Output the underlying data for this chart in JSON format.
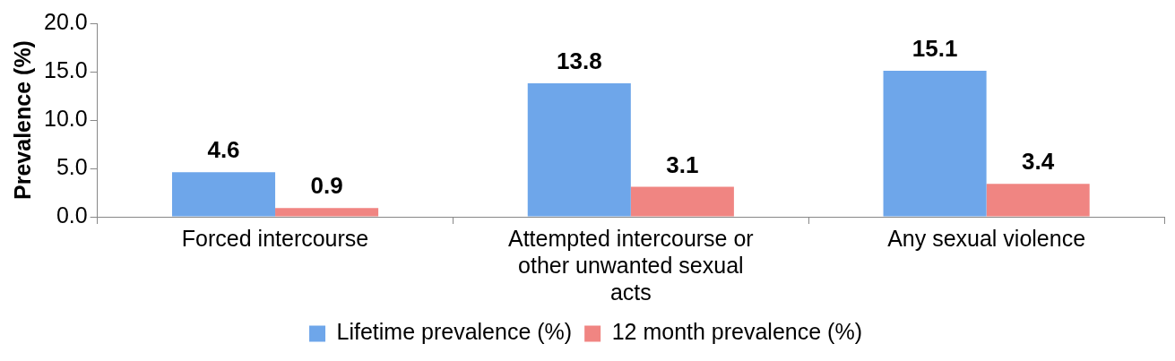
{
  "chart_data": {
    "type": "bar",
    "ylabel": "Prevalence (%)",
    "categories": [
      "Forced intercourse",
      "Attempted intercourse or other unwanted sexual acts",
      "Any sexual violence"
    ],
    "series": [
      {
        "name": "Lifetime prevalence (%)",
        "color": "#6ea6ea",
        "values": [
          4.6,
          13.8,
          15.1
        ]
      },
      {
        "name": "12 month prevalence (%)",
        "color": "#f08582",
        "values": [
          0.9,
          3.1,
          3.4
        ]
      }
    ],
    "ylim": [
      0,
      20
    ],
    "yticks": [
      {
        "value": 0,
        "label": "0.0"
      },
      {
        "value": 5,
        "label": "5.0"
      },
      {
        "value": 10,
        "label": "10.0"
      },
      {
        "value": 15,
        "label": "15.0"
      },
      {
        "value": 20,
        "label": "20.0"
      }
    ],
    "data_labels": true,
    "grid": false,
    "legend": "bottom"
  }
}
